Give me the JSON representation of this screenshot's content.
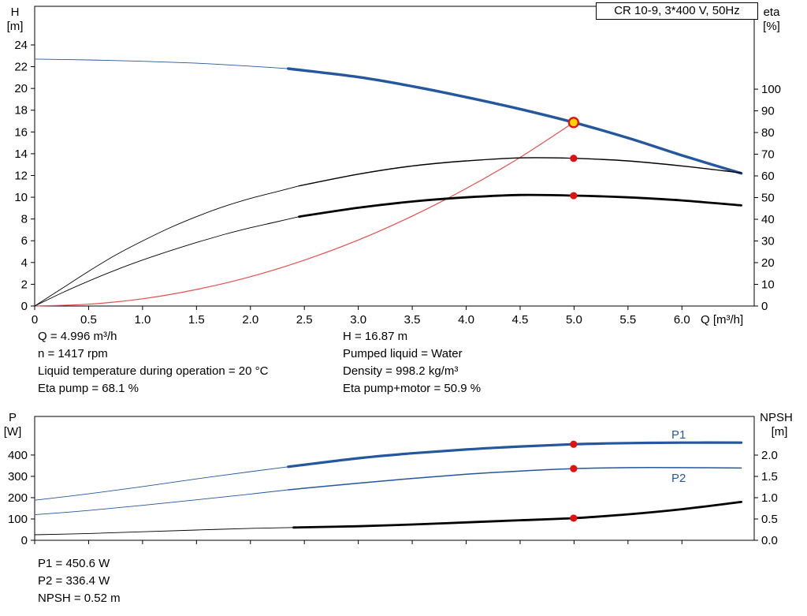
{
  "title_box": "CR 10-9, 3*400 V, 50Hz",
  "info_top": {
    "left": [
      "Q = 4.996 m³/h",
      "n = 1417 rpm",
      "Liquid temperature during operation = 20 °C",
      "Eta pump = 68.1 %"
    ],
    "right": [
      "H = 16.87 m",
      "Pumped liquid = Water",
      "Density = 998.2 kg/m³",
      "Eta pump+motor = 50.9 %"
    ]
  },
  "info_bottom": [
    "P1 = 450.6 W",
    "P2 = 336.4 W",
    "NPSH = 0.52 m"
  ],
  "colors": {
    "curve_blue": "#24579d",
    "curve_black": "#000000",
    "system_red": "#e4504e",
    "marker_red": "#e01111",
    "duty_fill": "#ffd400",
    "duty_stroke": "#e01111",
    "axis": "#000000"
  },
  "chart_data": [
    {
      "type": "line",
      "title": "CR 10-9, 3*400 V, 50Hz",
      "xlabel": "Q [m³/h]",
      "show_x_labels": true,
      "x_ticks": [
        "0",
        "0.5",
        "1.0",
        "1.5",
        "2.0",
        "2.5",
        "3.0",
        "3.5",
        "4.0",
        "4.5",
        "5.0",
        "5.5",
        "6.0"
      ],
      "xlim": [
        0,
        6.67
      ],
      "left_axis": {
        "name": "H",
        "unit": "[m]",
        "ticks": [
          "0",
          "2",
          "4",
          "6",
          "8",
          "10",
          "12",
          "14",
          "16",
          "18",
          "20",
          "22",
          "24"
        ],
        "lim": [
          0,
          27.55
        ]
      },
      "right_axis": {
        "name": "eta",
        "unit": "[%]",
        "ticks": [
          "0",
          "10",
          "20",
          "30",
          "40",
          "50",
          "60",
          "70",
          "80",
          "90",
          "100"
        ],
        "lim": [
          0,
          138.2
        ]
      },
      "series": [
        {
          "id": "h-curve-thin",
          "axis": "left",
          "color": "#24579d",
          "width": 0.9,
          "points": [
            [
              0,
              22.7
            ],
            [
              0.5,
              22.62
            ],
            [
              1,
              22.5
            ],
            [
              1.5,
              22.32
            ],
            [
              2,
              22.05
            ],
            [
              2.35,
              21.82
            ]
          ]
        },
        {
          "id": "h-curve",
          "axis": "left",
          "color": "#24579d",
          "width": 3.4,
          "points": [
            [
              2.35,
              21.82
            ],
            [
              3,
              21.05
            ],
            [
              3.5,
              20.2
            ],
            [
              4,
              19.2
            ],
            [
              4.5,
              18.1
            ],
            [
              5,
              16.87
            ],
            [
              5.5,
              15.45
            ],
            [
              6,
              13.85
            ],
            [
              6.55,
              12.2
            ]
          ]
        },
        {
          "id": "system-curve",
          "axis": "left",
          "color": "#e4504e",
          "width": 1.2,
          "points": [
            [
              0,
              0
            ],
            [
              0.5,
              0.17
            ],
            [
              1,
              0.67
            ],
            [
              1.5,
              1.52
            ],
            [
              2,
              2.7
            ],
            [
              2.5,
              4.22
            ],
            [
              3,
              6.07
            ],
            [
              3.5,
              8.27
            ],
            [
              4,
              10.8
            ],
            [
              4.5,
              13.66
            ],
            [
              4.996,
              16.87
            ]
          ]
        },
        {
          "id": "eta-pump-curve-thin",
          "axis": "right",
          "color": "#000000",
          "width": 0.9,
          "points": [
            [
              0,
              0
            ],
            [
              0.25,
              8
            ],
            [
              0.5,
              16
            ],
            [
              0.75,
              23.5
            ],
            [
              1,
              30
            ],
            [
              1.25,
              36
            ],
            [
              1.5,
              41.2
            ],
            [
              1.75,
              45.8
            ],
            [
              2,
              49.6
            ],
            [
              2.25,
              52.8
            ],
            [
              2.45,
              55.4
            ]
          ]
        },
        {
          "id": "eta-pump-curve",
          "axis": "right",
          "color": "#000000",
          "width": 1.4,
          "points": [
            [
              2.45,
              55.4
            ],
            [
              3,
              60.8
            ],
            [
              3.5,
              64.6
            ],
            [
              4,
              66.9
            ],
            [
              4.5,
              68.3
            ],
            [
              5,
              68.1
            ],
            [
              5.5,
              66.9
            ],
            [
              6,
              64.6
            ],
            [
              6.55,
              61.4
            ]
          ]
        },
        {
          "id": "eta-pump-motor-curve-thin",
          "axis": "right",
          "color": "#000000",
          "width": 0.9,
          "points": [
            [
              0,
              0
            ],
            [
              0.25,
              6
            ],
            [
              0.5,
              11.5
            ],
            [
              0.75,
              16.6
            ],
            [
              1,
              21.2
            ],
            [
              1.25,
              25.4
            ],
            [
              1.5,
              29.3
            ],
            [
              1.75,
              32.9
            ],
            [
              2,
              36.1
            ],
            [
              2.25,
              38.9
            ],
            [
              2.45,
              41.2
            ]
          ]
        },
        {
          "id": "eta-pump-motor-curve",
          "axis": "right",
          "color": "#000000",
          "width": 2.8,
          "points": [
            [
              2.45,
              41.2
            ],
            [
              3,
              45.3
            ],
            [
              3.5,
              48.2
            ],
            [
              4,
              50.1
            ],
            [
              4.5,
              51.2
            ],
            [
              5,
              50.9
            ],
            [
              5.5,
              50.1
            ],
            [
              6,
              48.7
            ],
            [
              6.55,
              46.4
            ]
          ]
        }
      ],
      "markers": [
        {
          "id": "duty-point",
          "axis": "left",
          "x": 4.996,
          "v": 16.87,
          "style": "duty"
        },
        {
          "id": "eta-pump-point",
          "axis": "right",
          "x": 4.996,
          "v": 68.1,
          "style": "dot"
        },
        {
          "id": "eta-pump-motor-point",
          "axis": "right",
          "x": 4.996,
          "v": 50.9,
          "style": "dot"
        }
      ]
    },
    {
      "type": "line",
      "title": "",
      "xlabel": "",
      "show_x_labels": false,
      "x_ticks": [
        "0",
        "0.5",
        "1.0",
        "1.5",
        "2.0",
        "2.5",
        "3.0",
        "3.5",
        "4.0",
        "4.5",
        "5.0",
        "5.5",
        "6.0"
      ],
      "xlim": [
        0,
        6.67
      ],
      "left_axis": {
        "name": "P",
        "unit": "[W]",
        "ticks": [
          "0",
          "100",
          "200",
          "300",
          "400"
        ],
        "lim": [
          0,
          581
        ]
      },
      "right_axis": {
        "name": "NPSH",
        "unit": "[m]",
        "ticks": [
          "0.0",
          "0.5",
          "1.0",
          "1.5",
          "2.0"
        ],
        "lim": [
          0,
          2.907
        ]
      },
      "series": [
        {
          "id": "p1-curve-thin",
          "axis": "left",
          "color": "#24579d",
          "width": 0.9,
          "points": [
            [
              0,
              188
            ],
            [
              0.5,
              218
            ],
            [
              1,
              252
            ],
            [
              1.5,
              288
            ],
            [
              2,
              322
            ],
            [
              2.35,
              345
            ]
          ]
        },
        {
          "id": "p1-curve",
          "axis": "left",
          "color": "#24579d",
          "width": 3.2,
          "label": "P1",
          "points": [
            [
              2.35,
              345
            ],
            [
              3,
              385
            ],
            [
              3.5,
              408
            ],
            [
              4,
              426
            ],
            [
              4.5,
              440
            ],
            [
              5,
              450.6
            ],
            [
              5.5,
              456
            ],
            [
              6,
              458
            ],
            [
              6.55,
              458
            ]
          ]
        },
        {
          "id": "p2-curve-thin",
          "axis": "left",
          "color": "#24579d",
          "width": 0.9,
          "points": [
            [
              0,
              120
            ],
            [
              0.5,
              140
            ],
            [
              1,
              164
            ],
            [
              1.5,
              190
            ],
            [
              2,
              217
            ],
            [
              2.35,
              237
            ]
          ]
        },
        {
          "id": "p2-curve",
          "axis": "left",
          "color": "#24579d",
          "width": 1.5,
          "label": "P2",
          "points": [
            [
              2.35,
              237
            ],
            [
              3,
              268
            ],
            [
              3.5,
              290
            ],
            [
              4,
              310
            ],
            [
              4.5,
              325
            ],
            [
              5,
              336.4
            ],
            [
              5.5,
              341
            ],
            [
              6,
              341
            ],
            [
              6.55,
              339
            ]
          ]
        },
        {
          "id": "npsh-curve-thin",
          "axis": "right",
          "color": "#000000",
          "width": 0.9,
          "points": [
            [
              0,
              0.13
            ],
            [
              0.5,
              0.16
            ],
            [
              1,
              0.2
            ],
            [
              1.5,
              0.24
            ],
            [
              2,
              0.28
            ],
            [
              2.4,
              0.3
            ]
          ]
        },
        {
          "id": "npsh-curve",
          "axis": "right",
          "color": "#000000",
          "width": 2.8,
          "points": [
            [
              2.4,
              0.3
            ],
            [
              3,
              0.33
            ],
            [
              3.5,
              0.37
            ],
            [
              4,
              0.42
            ],
            [
              4.5,
              0.47
            ],
            [
              5,
              0.52
            ],
            [
              5.5,
              0.61
            ],
            [
              6,
              0.73
            ],
            [
              6.55,
              0.9
            ]
          ]
        }
      ],
      "markers": [
        {
          "id": "p1-point",
          "axis": "left",
          "x": 4.996,
          "v": 450.6,
          "style": "dot"
        },
        {
          "id": "p2-point",
          "axis": "left",
          "x": 4.996,
          "v": 336.4,
          "style": "dot"
        },
        {
          "id": "npsh-point",
          "axis": "right",
          "x": 4.996,
          "v": 0.52,
          "style": "dot"
        }
      ]
    }
  ]
}
